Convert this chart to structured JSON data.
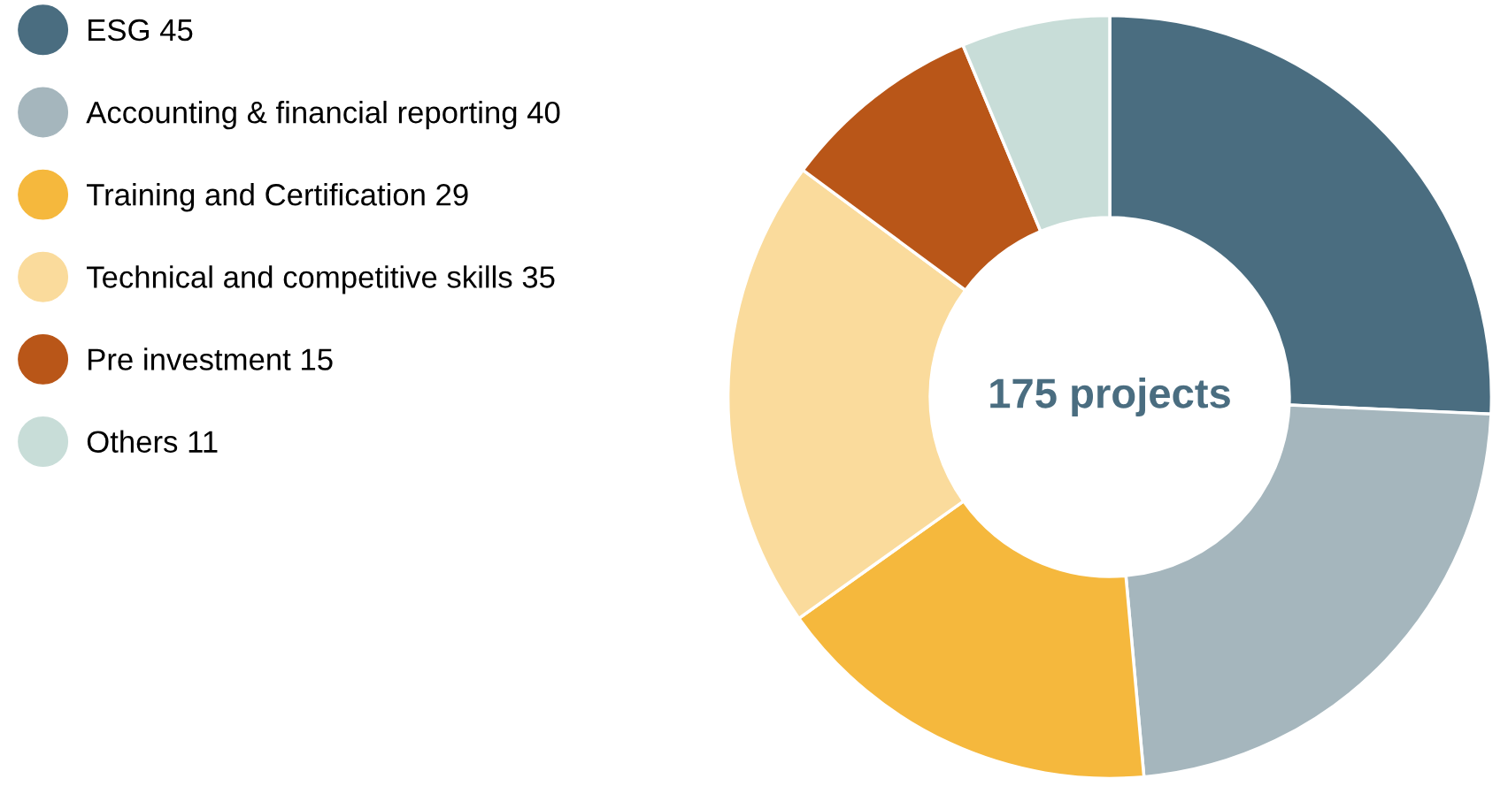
{
  "chart_data": {
    "type": "donut",
    "categories": [
      "ESG 45",
      "Accounting & financial reporting 40",
      "Training and Certification 29",
      "Technical and competitive skills 35",
      "Pre investment 15",
      "Others 11"
    ],
    "values": [
      45,
      40,
      29,
      35,
      15,
      11
    ],
    "colors": [
      "#4a6d80",
      "#a5b6bd",
      "#f5b83d",
      "#fadb9c",
      "#b95618",
      "#c8ddd8"
    ],
    "legend": "top left",
    "annotations": [
      "175 projects"
    ]
  }
}
